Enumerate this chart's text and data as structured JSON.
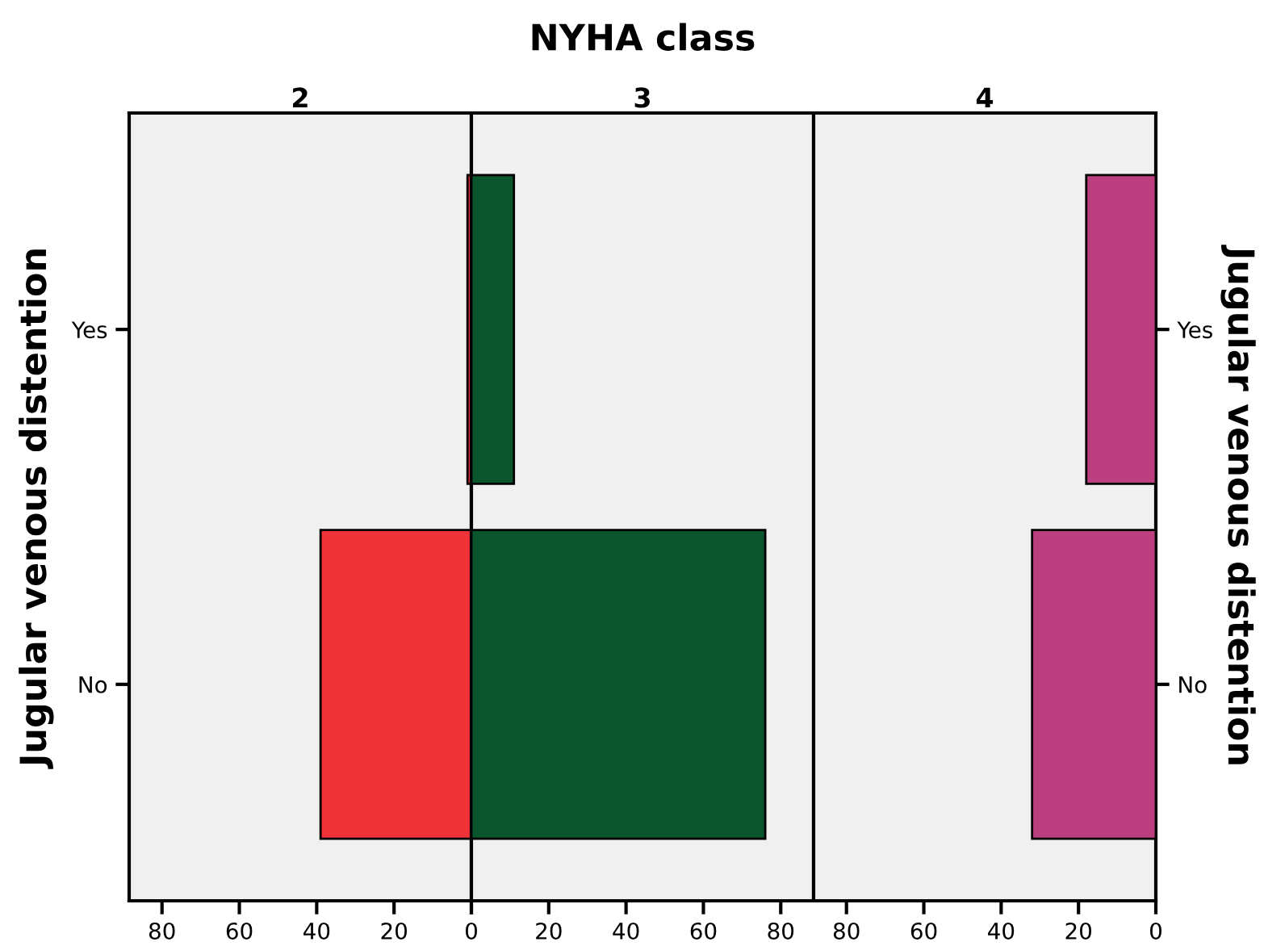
{
  "chart_data": [
    {
      "type": "bar",
      "orientation": "horizontal",
      "title": "2",
      "annotations": [
        "NYHA class"
      ],
      "ylabel": "Jugular venous distention",
      "categories": [
        "Yes",
        "No"
      ],
      "values": [
        1,
        39
      ],
      "color": "#f03339",
      "xlim": [
        88.5,
        0
      ],
      "xticks": [
        80,
        60,
        40,
        20,
        {
          "value": 0,
          "label": null
        }
      ],
      "grid": false
    },
    {
      "type": "bar",
      "orientation": "horizontal",
      "title": "3",
      "categories": [
        null,
        null
      ],
      "values": [
        11,
        76
      ],
      "color": "#0b552d",
      "xlim": [
        0,
        88.5
      ],
      "xticks": [
        0,
        20,
        40,
        60,
        80
      ],
      "tick_labels": "x",
      "grid": false
    },
    {
      "type": "bar",
      "orientation": "horizontal",
      "title": "4",
      "y2label": "Jugular venous distention",
      "categories": [
        "Yes",
        "No"
      ],
      "values": [
        18,
        32
      ],
      "color": "#bb3f7f",
      "xlim": [
        88.5,
        0
      ],
      "xticks": [
        80,
        60,
        40,
        20,
        0
      ],
      "grid": false
    }
  ]
}
